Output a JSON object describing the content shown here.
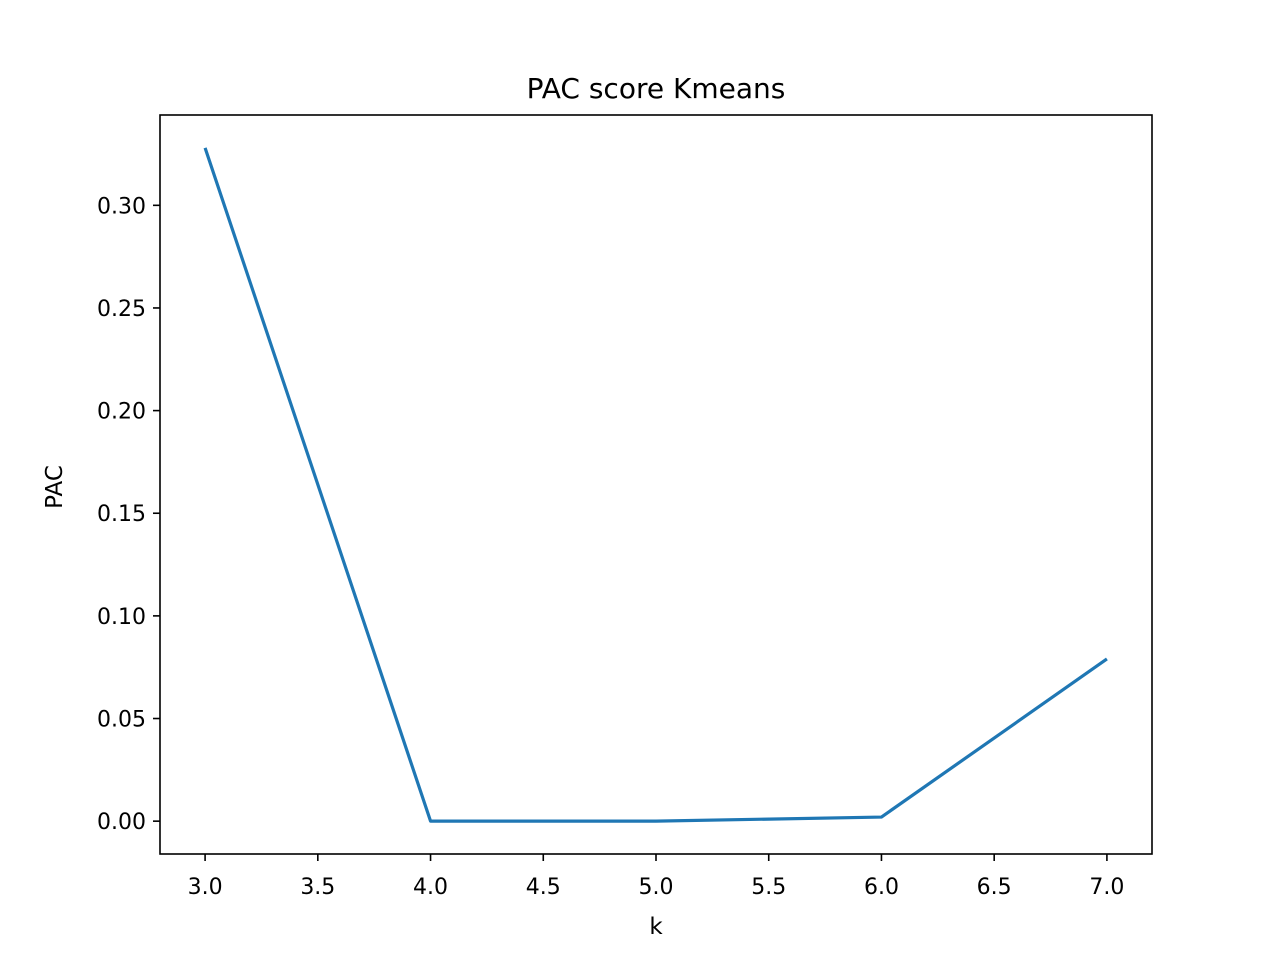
{
  "chart_data": {
    "type": "line",
    "title": "PAC score Kmeans",
    "xlabel": "k",
    "ylabel": "PAC",
    "x": [
      3,
      4,
      5,
      6,
      7
    ],
    "series": [
      {
        "values": [
          0.328,
          0.0,
          0.0,
          0.002,
          0.079
        ],
        "color": "#1f77b4"
      }
    ],
    "xlim": [
      2.8,
      7.2
    ],
    "ylim": [
      -0.016,
      0.344
    ],
    "xticks": [
      3.0,
      3.5,
      4.0,
      4.5,
      5.0,
      5.5,
      6.0,
      6.5,
      7.0
    ],
    "xtick_labels": [
      "3.0",
      "3.5",
      "4.0",
      "4.5",
      "5.0",
      "5.5",
      "6.0",
      "6.5",
      "7.0"
    ],
    "yticks": [
      0.0,
      0.05,
      0.1,
      0.15,
      0.2,
      0.25,
      0.3
    ],
    "ytick_labels": [
      "0.00",
      "0.05",
      "0.10",
      "0.15",
      "0.20",
      "0.25",
      "0.30"
    ],
    "grid": false,
    "legend": "none"
  }
}
